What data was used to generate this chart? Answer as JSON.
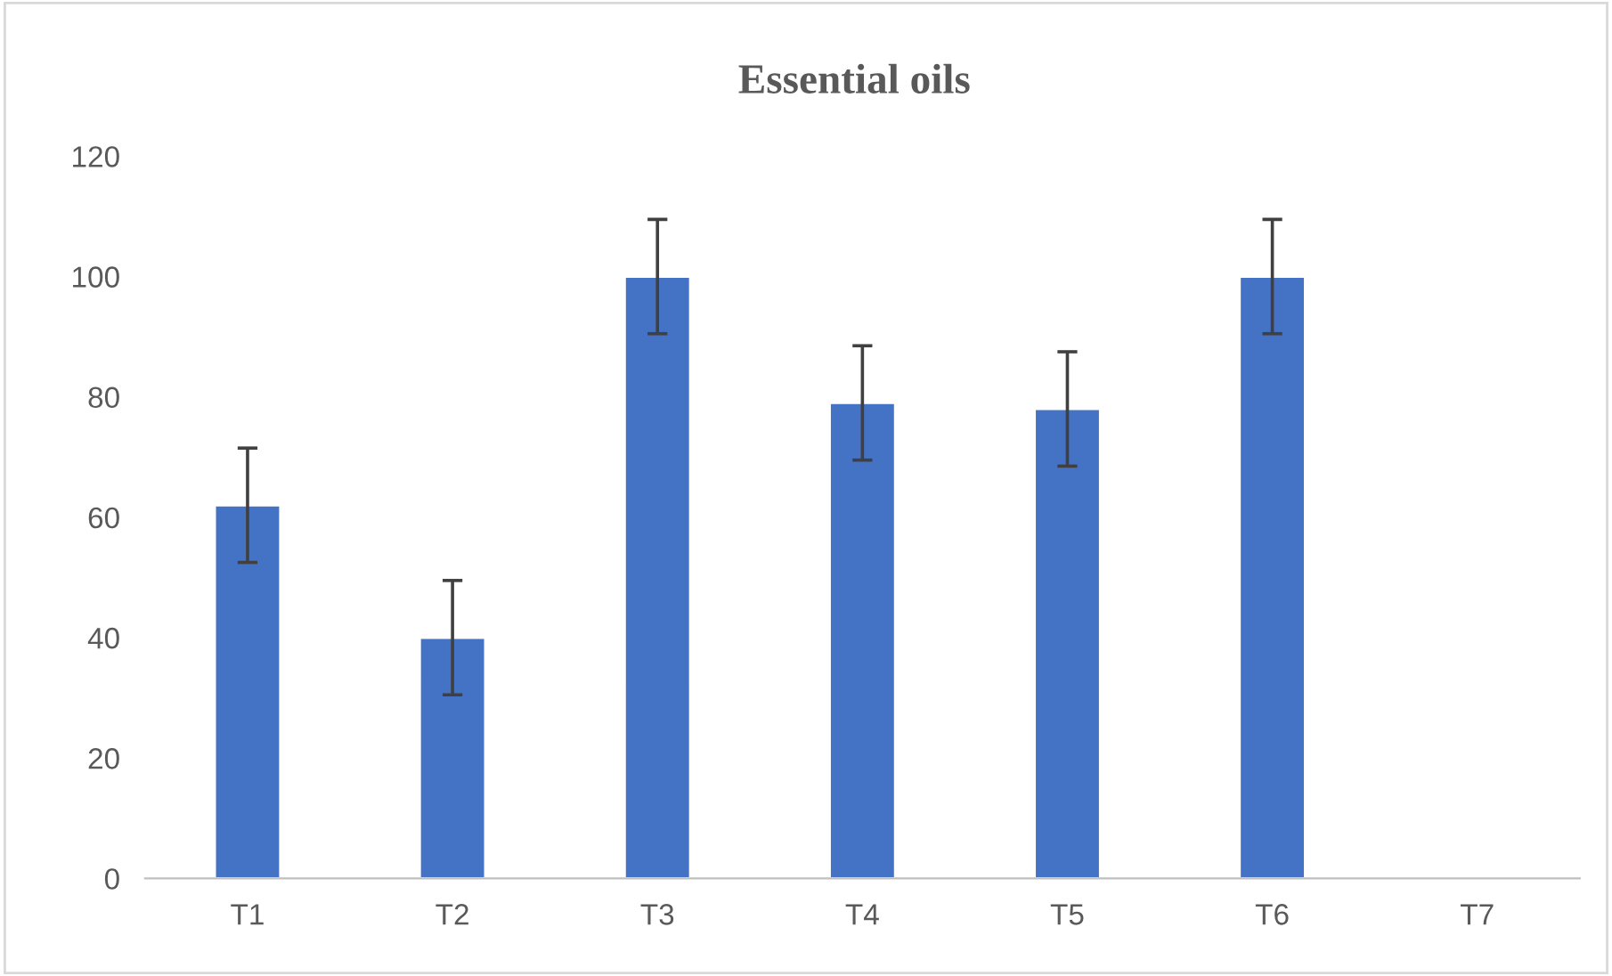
{
  "chart_data": {
    "type": "bar",
    "title": "Essential oils",
    "categories": [
      "T1",
      "T2",
      "T3",
      "T4",
      "T5",
      "T6",
      "T7"
    ],
    "values": [
      62,
      40,
      100,
      79,
      78,
      100,
      null
    ],
    "errors": [
      9.5,
      9.5,
      9.5,
      9.5,
      9.5,
      9.5,
      null
    ],
    "color": "#4472c4",
    "ylim": [
      0,
      120
    ],
    "yticks": [
      0,
      20,
      40,
      60,
      80,
      100,
      120
    ],
    "grid": false
  }
}
